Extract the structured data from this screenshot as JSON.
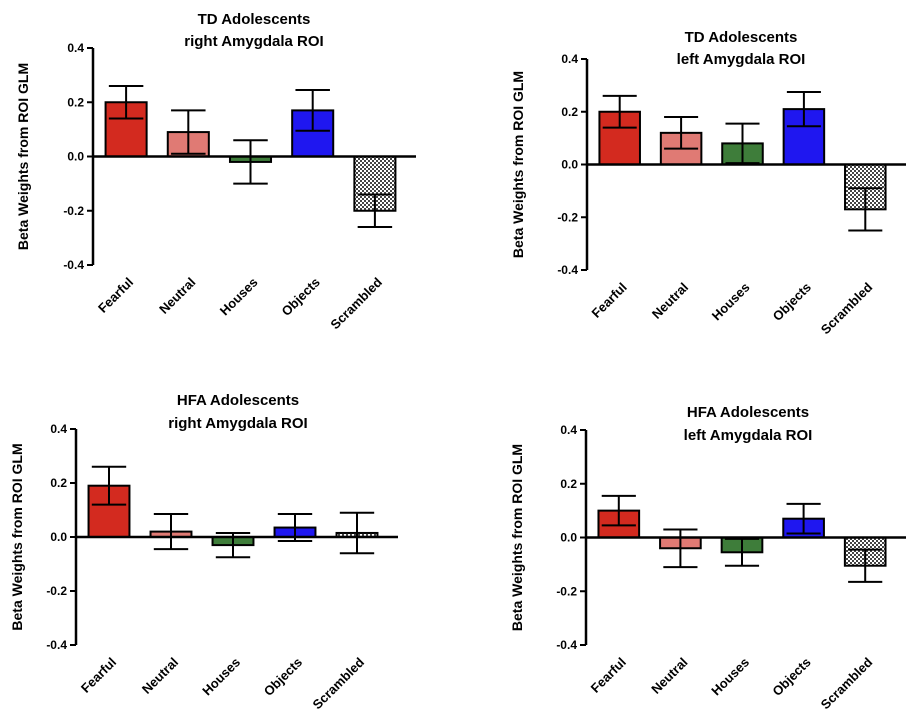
{
  "figure": {
    "panels_order": [
      "td_right",
      "td_left",
      "hfa_right",
      "hfa_left"
    ]
  },
  "colors": {
    "fearful": "#d32a1f",
    "neutral": "#e07a74",
    "houses": "#3e7d3a",
    "objects": "#1f17f0",
    "scrambled": "#c8c8c8"
  },
  "chart_data": [
    {
      "type": "bar",
      "id": "td_right",
      "title_line1": "TD Adolescents",
      "title_line2": "right Amygdala ROI",
      "ylabel": "Beta Weights from ROI GLM",
      "ylim": [
        -0.4,
        0.4
      ],
      "yticks": [
        "-0.4",
        "-0.2",
        "0.0",
        "0.2",
        "0.4"
      ],
      "categories": [
        "Fearful",
        "Neutral",
        "Houses",
        "Objects",
        "Scrambled"
      ],
      "values": [
        0.2,
        0.09,
        -0.02,
        0.17,
        -0.2
      ],
      "errors": [
        0.06,
        0.08,
        0.08,
        0.075,
        0.06
      ]
    },
    {
      "type": "bar",
      "id": "td_left",
      "title_line1": "TD Adolescents",
      "title_line2": "left Amygdala ROI",
      "ylabel": "Beta Weights from ROI GLM",
      "ylim": [
        -0.4,
        0.4
      ],
      "yticks": [
        "-0.4",
        "-0.2",
        "0.0",
        "0.2",
        "0.4"
      ],
      "categories": [
        "Fearful",
        "Neutral",
        "Houses",
        "Objects",
        "Scrambled"
      ],
      "values": [
        0.2,
        0.12,
        0.08,
        0.21,
        -0.17
      ],
      "errors": [
        0.06,
        0.06,
        0.075,
        0.065,
        0.08
      ]
    },
    {
      "type": "bar",
      "id": "hfa_right",
      "title_line1": "HFA Adolescents",
      "title_line2": "right Amygdala ROI",
      "ylabel": "Beta Weights from ROI GLM",
      "ylim": [
        -0.4,
        0.4
      ],
      "yticks": [
        "-0.4",
        "-0.2",
        "0.0",
        "0.2",
        "0.4"
      ],
      "categories": [
        "Fearful",
        "Neutral",
        "Houses",
        "Objects",
        "Scrambled"
      ],
      "values": [
        0.19,
        0.02,
        -0.03,
        0.035,
        0.015
      ],
      "errors": [
        0.07,
        0.065,
        0.045,
        0.05,
        0.075
      ]
    },
    {
      "type": "bar",
      "id": "hfa_left",
      "title_line1": "HFA Adolescents",
      "title_line2": "left Amygdala ROI",
      "ylabel": "Beta Weights from ROI GLM",
      "ylim": [
        -0.4,
        0.4
      ],
      "yticks": [
        "-0.4",
        "-0.2",
        "0.0",
        "0.2",
        "0.4"
      ],
      "categories": [
        "Fearful",
        "Neutral",
        "Houses",
        "Objects",
        "Scrambled"
      ],
      "values": [
        0.1,
        -0.04,
        -0.055,
        0.07,
        -0.105
      ],
      "errors": [
        0.055,
        0.07,
        0.05,
        0.055,
        0.06
      ]
    }
  ]
}
